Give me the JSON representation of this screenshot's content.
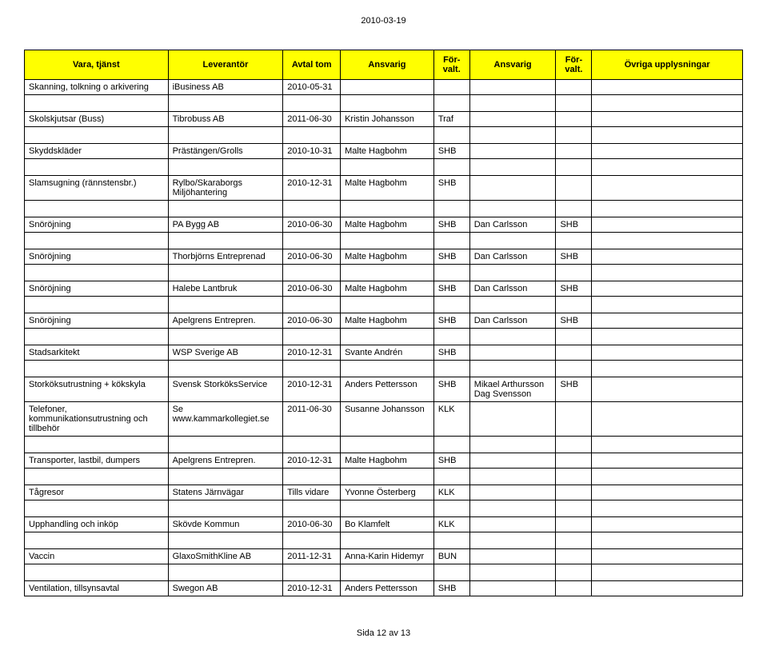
{
  "page_date": "2010-03-19",
  "footer_text": "Sida 12 av 13",
  "header_bg": "#ffff00",
  "border_color": "#000000",
  "columns": [
    "Vara,\ntjänst",
    "Leverantör",
    "Avtal tom",
    "Ansvarig",
    "För-\nvalt.",
    "Ansvarig",
    "För-\nvalt.",
    "Övriga\nupplysningar"
  ],
  "rows": [
    [
      "Skanning, tolkning o arkivering",
      "iBusiness AB",
      "2010-05-31",
      "",
      "",
      "",
      "",
      ""
    ],
    null,
    [
      "Skolskjutsar (Buss)",
      "Tibrobuss AB",
      "2011-06-30",
      "Kristin Johansson",
      "Traf",
      "",
      "",
      ""
    ],
    null,
    [
      "Skyddskläder",
      "Prästängen/Grolls",
      "2010-10-31",
      "Malte Hagbohm",
      "SHB",
      "",
      "",
      ""
    ],
    null,
    [
      "Slamsugning (rännstensbr.)",
      "Rylbo/Skaraborgs Miljöhantering",
      "2010-12-31",
      "Malte Hagbohm",
      "SHB",
      "",
      "",
      ""
    ],
    null,
    [
      "Snöröjning",
      "PA Bygg AB",
      "2010-06-30",
      "Malte Hagbohm",
      "SHB",
      "Dan Carlsson",
      "SHB",
      ""
    ],
    null,
    [
      "Snöröjning",
      "Thorbjörns Entreprenad",
      "2010-06-30",
      "Malte Hagbohm",
      "SHB",
      "Dan Carlsson",
      "SHB",
      ""
    ],
    null,
    [
      "Snöröjning",
      "Halebe Lantbruk",
      "2010-06-30",
      "Malte Hagbohm",
      "SHB",
      "Dan Carlsson",
      "SHB",
      ""
    ],
    null,
    [
      "Snöröjning",
      "Apelgrens Entrepren.",
      "2010-06-30",
      "Malte Hagbohm",
      "SHB",
      "Dan Carlsson",
      "SHB",
      ""
    ],
    null,
    [
      "Stadsarkitekt",
      "WSP Sverige AB",
      "2010-12-31",
      "Svante Andrén",
      "SHB",
      "",
      "",
      ""
    ],
    null,
    [
      "Storköksutrustning + kökskyla",
      "Svensk StorköksService",
      "2010-12-31",
      "Anders Pettersson",
      "SHB",
      "Mikael Arthursson Dag Svensson",
      "SHB",
      ""
    ],
    [
      "Telefoner, kommunikationsutrustning och tillbehör",
      "Se www.kammarkollegiet.se",
      "2011-06-30",
      "Susanne Johansson",
      "KLK",
      "",
      "",
      ""
    ],
    null,
    [
      "Transporter, lastbil, dumpers",
      "Apelgrens Entrepren.",
      "2010-12-31",
      "Malte Hagbohm",
      "SHB",
      "",
      "",
      ""
    ],
    null,
    [
      "Tågresor",
      "Statens Järnvägar",
      "Tills vidare",
      "Yvonne Österberg",
      "KLK",
      "",
      "",
      ""
    ],
    null,
    [
      "Upphandling och inköp",
      "Skövde Kommun",
      "2010-06-30",
      "Bo Klamfelt",
      "KLK",
      "",
      "",
      ""
    ],
    null,
    [
      "Vaccin",
      "GlaxoSmithKline AB",
      "2011-12-31",
      "Anna-Karin Hidemyr",
      "BUN",
      "",
      "",
      ""
    ],
    null,
    [
      "Ventilation, tillsynsavtal",
      "Swegon AB",
      "2010-12-31",
      "Anders Pettersson",
      "SHB",
      "",
      "",
      ""
    ]
  ]
}
